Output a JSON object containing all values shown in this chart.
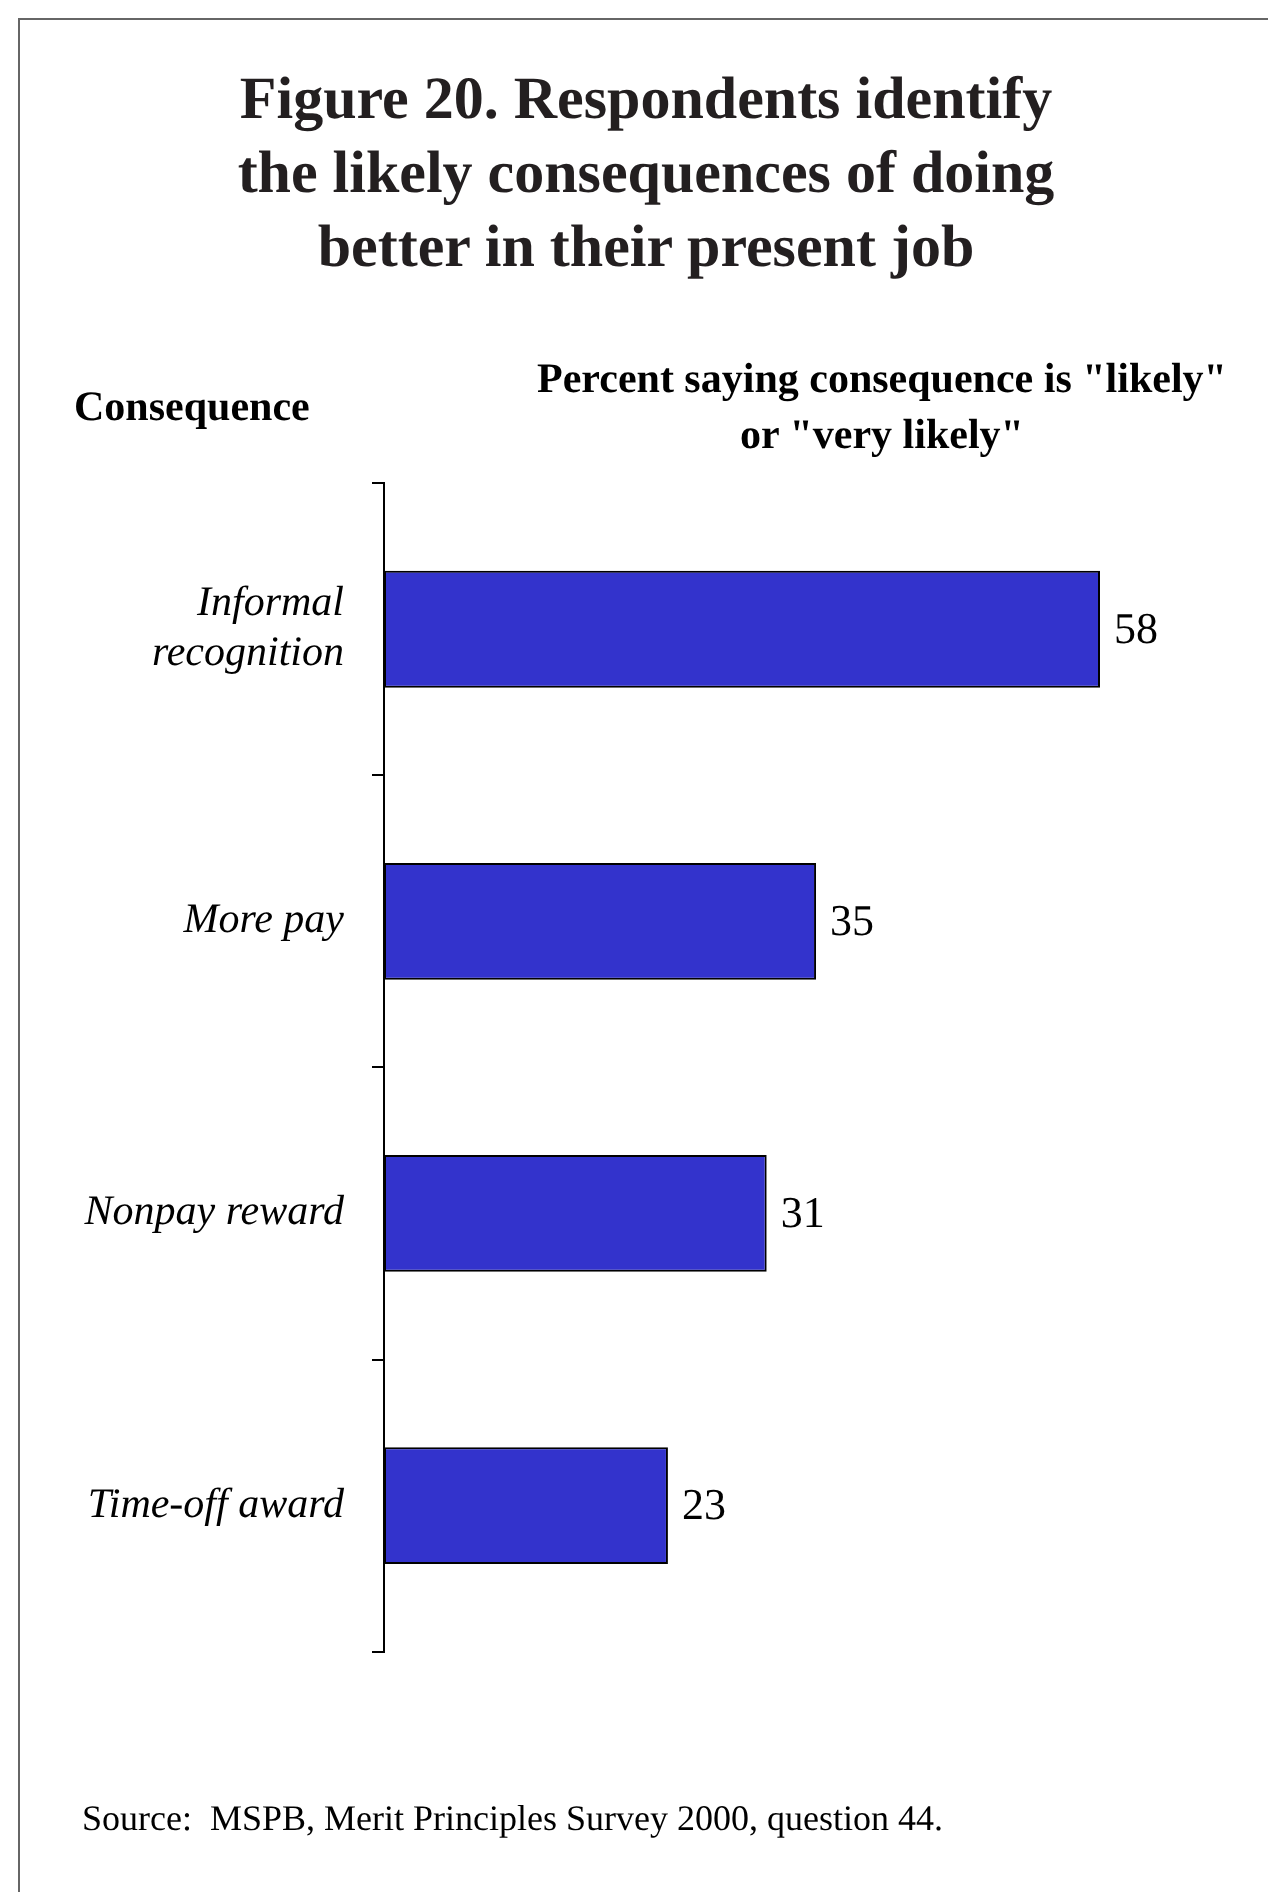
{
  "chart_data": {
    "type": "bar",
    "orientation": "horizontal",
    "title": "Figure 20. Respondents identify the likely consequences of doing better in their present job",
    "xlabel": "Percent saying consequence is \"likely\" or \"very likely\"",
    "ylabel": "Consequence",
    "categories": [
      "Informal recognition",
      "More pay",
      "Nonpay reward",
      "Time-off award"
    ],
    "values": [
      58,
      35,
      31,
      23
    ],
    "color": "#3333cc",
    "data_labels": true,
    "annotations": [
      "Source:  MSPB, Merit Principles Survey 2000, question 44."
    ]
  }
}
